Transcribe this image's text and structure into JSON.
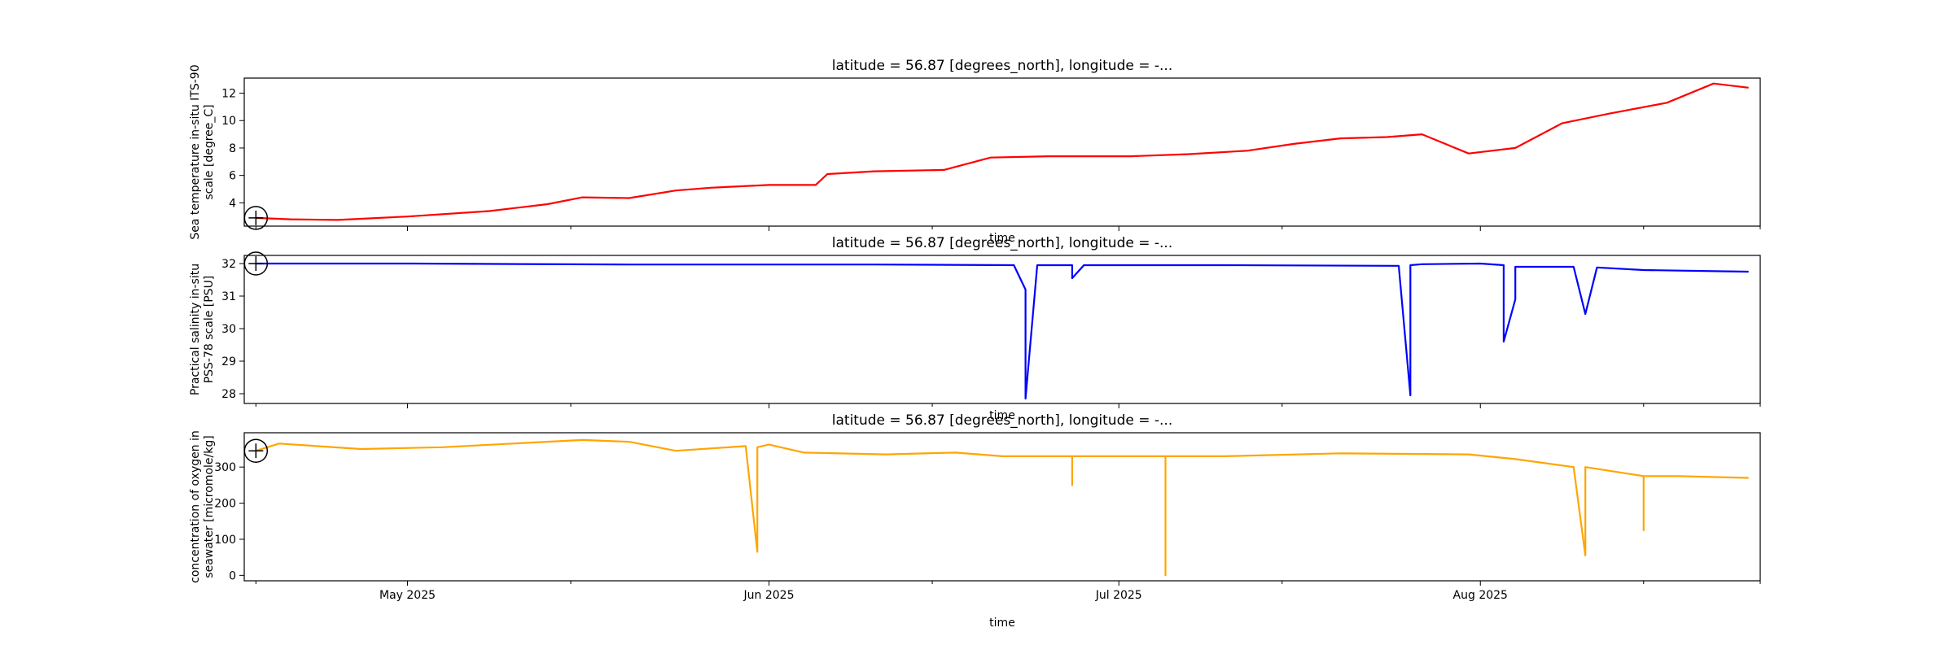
{
  "chart_data": [
    {
      "type": "line",
      "title": "latitude = 56.87 [degrees_north], longitude = -...",
      "xlabel": "time",
      "ylabel": [
        "Sea temperature in-situ ITS-90",
        "scale [degree_C]"
      ],
      "x_range": [
        "2025-04-17",
        "2025-08-25"
      ],
      "ylim": [
        2.3,
        13.1
      ],
      "yticks": [
        4,
        6,
        8,
        10,
        12
      ],
      "color": "#ff0000",
      "x_marker": "2025-04-18",
      "marker_value": 2.9,
      "series": [
        {
          "x": [
            "2025-04-18",
            "2025-04-21",
            "2025-04-25",
            "2025-05-01",
            "2025-05-08",
            "2025-05-13",
            "2025-05-16",
            "2025-05-20",
            "2025-05-24",
            "2025-05-27",
            "2025-06-01",
            "2025-06-05",
            "2025-06-06",
            "2025-06-10",
            "2025-06-16",
            "2025-06-20",
            "2025-06-25",
            "2025-07-02",
            "2025-07-07",
            "2025-07-12",
            "2025-07-16",
            "2025-07-20",
            "2025-07-24",
            "2025-07-27",
            "2025-07-31",
            "2025-08-04",
            "2025-08-08",
            "2025-08-12",
            "2025-08-17",
            "2025-08-21",
            "2025-08-24"
          ],
          "values": [
            2.9,
            2.8,
            2.75,
            3.0,
            3.4,
            3.9,
            4.4,
            4.35,
            4.9,
            5.1,
            5.3,
            5.3,
            6.1,
            6.3,
            6.4,
            7.3,
            7.4,
            7.4,
            7.55,
            7.8,
            8.3,
            8.7,
            8.8,
            9.0,
            7.6,
            8.0,
            9.8,
            10.5,
            11.3,
            12.7,
            12.4
          ]
        }
      ]
    },
    {
      "type": "line",
      "title": "latitude = 56.87 [degrees_north], longitude = -...",
      "xlabel": "time",
      "ylabel": [
        "Practical salinity in-situ",
        "PSS-78 scale [PSU]"
      ],
      "x_range": [
        "2025-04-17",
        "2025-08-25"
      ],
      "ylim": [
        27.7,
        32.25
      ],
      "yticks": [
        28,
        29,
        30,
        31,
        32
      ],
      "color": "#0000ff",
      "x_marker": "2025-04-18",
      "marker_value": 32.0,
      "series": [
        {
          "x": [
            "2025-04-18",
            "2025-05-01",
            "2025-05-20",
            "2025-06-10",
            "2025-06-22",
            "2025-06-23",
            "2025-06-23",
            "2025-06-24",
            "2025-06-27",
            "2025-06-27",
            "2025-06-28",
            "2025-07-10",
            "2025-07-25",
            "2025-07-26",
            "2025-07-26",
            "2025-07-27",
            "2025-08-01",
            "2025-08-03",
            "2025-08-03",
            "2025-08-04",
            "2025-08-04",
            "2025-08-09",
            "2025-08-10",
            "2025-08-11",
            "2025-08-15",
            "2025-08-24"
          ],
          "values": [
            32.0,
            32.0,
            31.97,
            31.97,
            31.95,
            31.2,
            27.85,
            31.95,
            31.95,
            31.55,
            31.95,
            31.95,
            31.93,
            27.95,
            31.95,
            31.98,
            32.0,
            31.95,
            29.6,
            30.9,
            31.9,
            31.9,
            30.45,
            31.88,
            31.8,
            31.75
          ]
        }
      ]
    },
    {
      "type": "line",
      "title": "latitude = 56.87 [degrees_north], longitude = -...",
      "xlabel": "time",
      "ylabel": [
        "concentration of oxygen in",
        "seawater [micromole/kg]"
      ],
      "x_range": [
        "2025-04-17",
        "2025-08-25"
      ],
      "ylim": [
        -15,
        395
      ],
      "yticks": [
        0,
        100,
        200,
        300
      ],
      "xticks": [
        "May 2025",
        "Jun 2025",
        "Jul 2025",
        "Aug 2025"
      ],
      "color": "#ffa500",
      "x_marker": "2025-04-18",
      "marker_value": 345,
      "series": [
        {
          "x": [
            "2025-04-18",
            "2025-04-20",
            "2025-04-27",
            "2025-05-04",
            "2025-05-10",
            "2025-05-16",
            "2025-05-20",
            "2025-05-24",
            "2025-05-30",
            "2025-05-31",
            "2025-05-31",
            "2025-06-01",
            "2025-06-04",
            "2025-06-11",
            "2025-06-17",
            "2025-06-21",
            "2025-06-27",
            "2025-06-27",
            "2025-06-27",
            "2025-07-05",
            "2025-07-05",
            "2025-07-05",
            "2025-07-10",
            "2025-07-20",
            "2025-07-31",
            "2025-08-04",
            "2025-08-09",
            "2025-08-10",
            "2025-08-10",
            "2025-08-15",
            "2025-08-15",
            "2025-08-15",
            "2025-08-18",
            "2025-08-24"
          ],
          "values": [
            345,
            365,
            350,
            355,
            365,
            375,
            370,
            345,
            358,
            65,
            355,
            362,
            340,
            335,
            340,
            330,
            330,
            250,
            330,
            330,
            0,
            330,
            330,
            338,
            335,
            322,
            300,
            55,
            300,
            275,
            125,
            275,
            275,
            270
          ]
        }
      ]
    }
  ]
}
